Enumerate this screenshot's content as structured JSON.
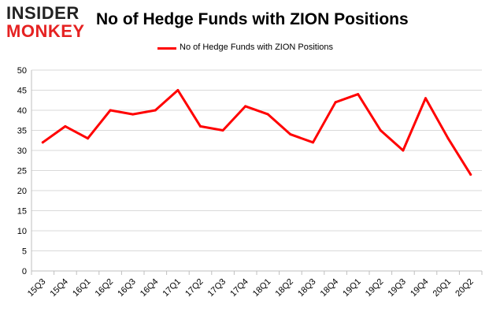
{
  "logo": {
    "line1": "INSIDER",
    "line2": "MONKEY"
  },
  "colors": {
    "series": "#ff0000",
    "grid": "#d9d9d9",
    "logo_red": "#e52222"
  },
  "chart_data": {
    "type": "line",
    "title": "No of Hedge Funds with ZION Positions",
    "xlabel": "",
    "ylabel": "",
    "ylim": [
      0,
      50
    ],
    "yticks": [
      0,
      5,
      10,
      15,
      20,
      25,
      30,
      35,
      40,
      45,
      50
    ],
    "grid": true,
    "legend_position": "top-center",
    "categories": [
      "15Q3",
      "15Q4",
      "16Q1",
      "16Q2",
      "16Q3",
      "16Q4",
      "17Q1",
      "17Q2",
      "17Q3",
      "17Q4",
      "18Q1",
      "18Q2",
      "18Q3",
      "18Q4",
      "19Q1",
      "19Q2",
      "19Q3",
      "19Q4",
      "20Q1",
      "20Q2"
    ],
    "series": [
      {
        "name": "No of Hedge Funds with ZION Positions",
        "values": [
          32,
          36,
          33,
          40,
          39,
          40,
          45,
          36,
          35,
          41,
          39,
          34,
          32,
          42,
          44,
          35,
          30,
          43,
          33,
          24
        ]
      }
    ]
  }
}
